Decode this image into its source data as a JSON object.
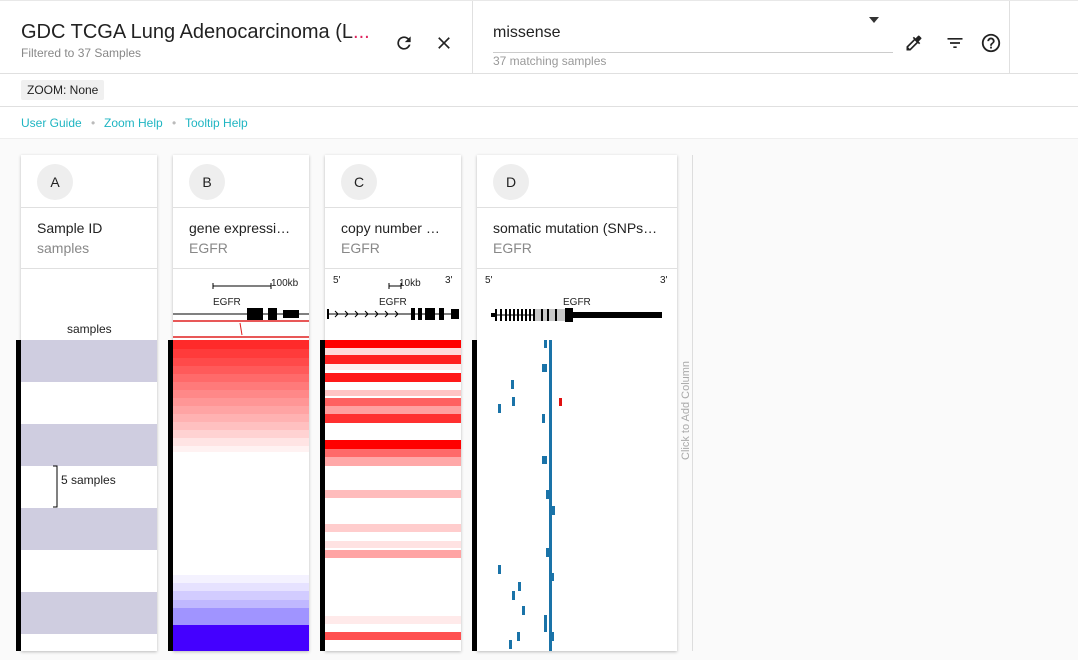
{
  "header": {
    "title": "GDC TCGA Lung Adenocarcinoma (L",
    "title_ellipsis": "...",
    "subtitle": "Filtered to 37 Samples"
  },
  "search": {
    "value": "missense",
    "help": "37 matching samples"
  },
  "zoom": {
    "label": "ZOOM: None"
  },
  "help_links": [
    "User Guide",
    "Zoom Help",
    "Tooltip Help"
  ],
  "icons": [
    "refresh-icon",
    "close-icon",
    "chevron-down-icon",
    "eyedropper-icon",
    "filter-icon",
    "help-icon"
  ],
  "columns": [
    {
      "letter": "A",
      "title": "Sample ID",
      "subtitle": "samples"
    },
    {
      "letter": "B",
      "title": "gene expressi…",
      "subtitle": "EGFR"
    },
    {
      "letter": "C",
      "title": "copy number …",
      "subtitle": "EGFR"
    },
    {
      "letter": "D",
      "title": "somatic mutation (SNPs…",
      "subtitle": "EGFR"
    }
  ],
  "column_a": {
    "anno_label": "samples",
    "group_label": "5 samples"
  },
  "column_b": {
    "scale": "100kb",
    "gene": "EGFR"
  },
  "column_c": {
    "five": "5'",
    "three": "3'",
    "scale": "10kb",
    "gene": "EGFR"
  },
  "column_d": {
    "five": "5'",
    "three": "3'",
    "gene": "EGFR"
  },
  "add_column": "Click to Add Column",
  "colors": {
    "accent_link": "#1fb5c2",
    "sample_band": "#cfcde0",
    "cnv_high": "#ff0000",
    "expr_low": "#4400ff",
    "mutation": "#1a73a8",
    "mutation_alt": "#e01010"
  }
}
